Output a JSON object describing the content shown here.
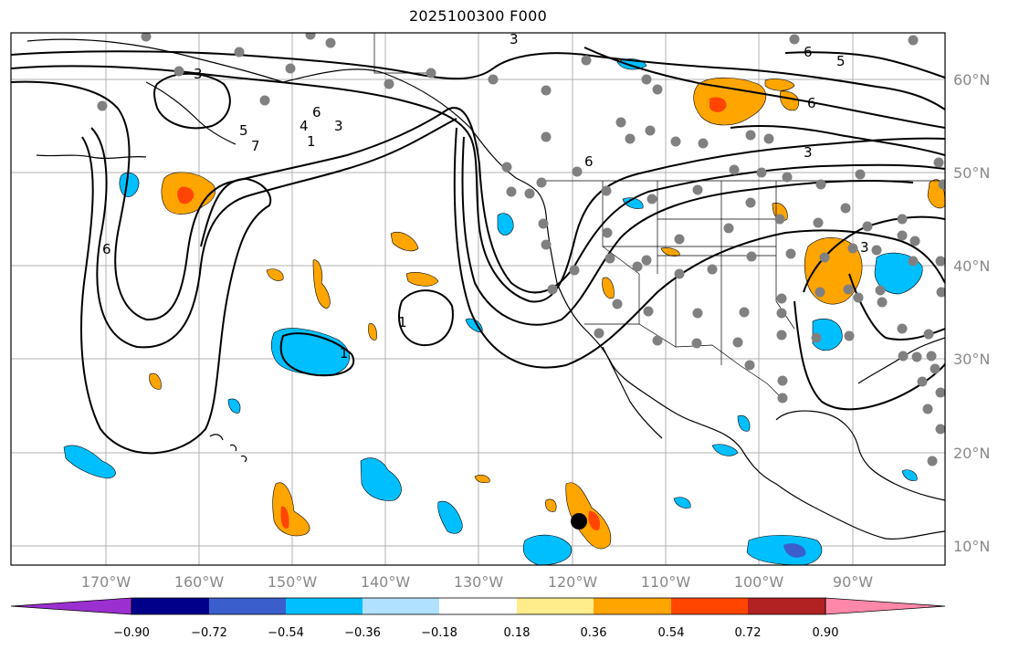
{
  "title": "2025100300 F000",
  "map": {
    "latitude_labels": [
      "60°N",
      "50°N",
      "40°N",
      "30°N",
      "20°N",
      "10°N"
    ],
    "longitude_labels": [
      "170°W",
      "160°W",
      "150°W",
      "140°W",
      "130°W",
      "120°W",
      "110°W",
      "100°W",
      "90°W"
    ],
    "contour_labels": [
      "3",
      "5",
      "4",
      "6",
      "3",
      "7",
      "1",
      "6",
      "6",
      "5",
      "6",
      "6",
      "3",
      "3",
      "1",
      "1",
      "3"
    ]
  },
  "colorbar": {
    "tick_labels": [
      "−0.90",
      "−0.72",
      "−0.54",
      "−0.36",
      "−0.18",
      "0.18",
      "0.36",
      "0.54",
      "0.72",
      "0.90"
    ],
    "colors": [
      "#9b30d0",
      "#00008b",
      "#3a5fcd",
      "#00bfff",
      "#b0e2ff",
      "#ffffff",
      "#ffec8b",
      "#ffa500",
      "#ff4500",
      "#b22222",
      "#ff88aa"
    ]
  },
  "colors": {
    "grid": "#b0b0b0",
    "axis_text": "#888888",
    "negative": "#00bfff",
    "positive": "#ffa500",
    "strong_positive": "#ff4500",
    "strong_negative": "#3a5fcd",
    "station": "#808080"
  }
}
